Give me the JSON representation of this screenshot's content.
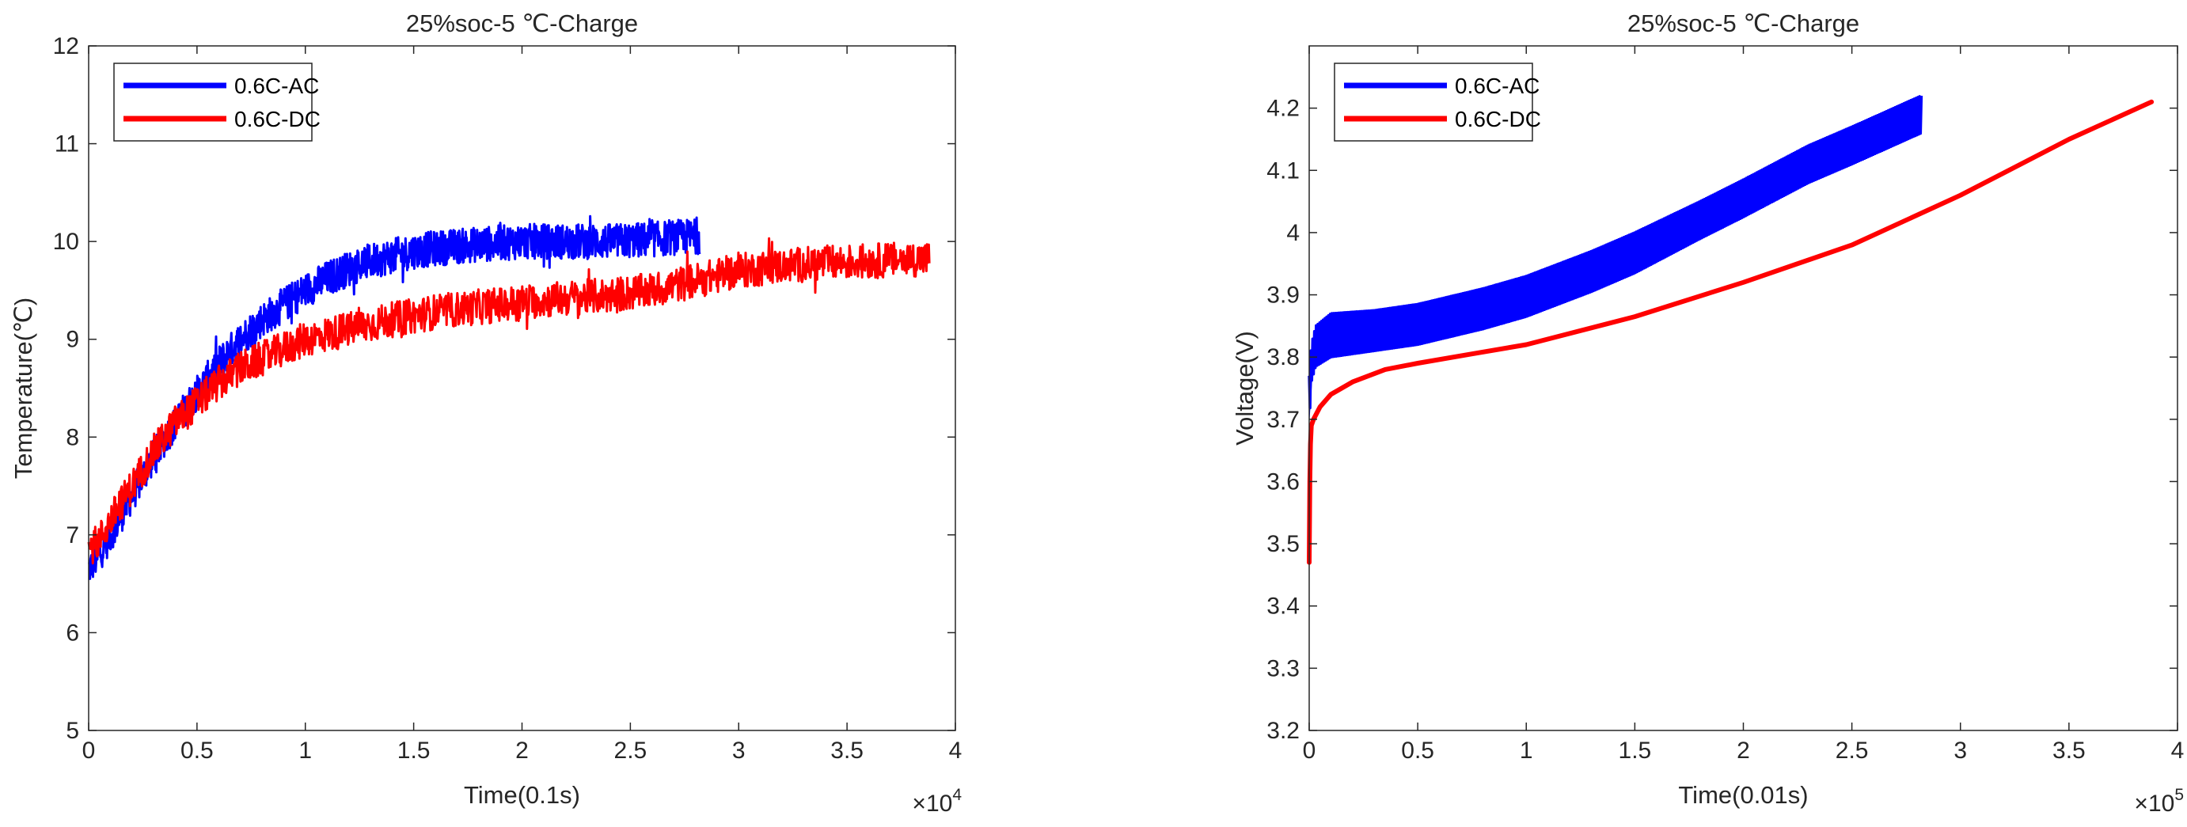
{
  "chart_data": [
    {
      "type": "line",
      "title": "25%soc-5 ℃-Charge",
      "xlabel": "Time(0.1s)",
      "ylabel": "Temperature(℃)",
      "x_exponent": "×10",
      "x_exponent_power": "4",
      "xlim": [
        0,
        4
      ],
      "ylim": [
        5,
        12
      ],
      "xticks": [
        "0",
        "0.5",
        "1",
        "1.5",
        "2",
        "2.5",
        "3",
        "3.5",
        "4"
      ],
      "yticks": [
        "5",
        "6",
        "7",
        "8",
        "9",
        "10",
        "11",
        "12"
      ],
      "legend": {
        "location": "top-left",
        "entries": [
          "0.6C-AC",
          "0.6C-DC"
        ]
      },
      "series": [
        {
          "name": "0.6C-AC",
          "color": "#0000ff",
          "noise_band": 0.18,
          "x": [
            0,
            0.05,
            0.1,
            0.2,
            0.3,
            0.4,
            0.5,
            0.6,
            0.7,
            0.8,
            0.9,
            1.0,
            1.1,
            1.2,
            1.3,
            1.4,
            1.5,
            1.6,
            1.8,
            2.0,
            2.2,
            2.4,
            2.6,
            2.75,
            2.82
          ],
          "values": [
            6.65,
            6.8,
            7.0,
            7.4,
            7.8,
            8.15,
            8.45,
            8.75,
            9.0,
            9.2,
            9.35,
            9.5,
            9.62,
            9.72,
            9.8,
            9.85,
            9.9,
            9.93,
            9.97,
            10.0,
            10.0,
            10.0,
            10.02,
            10.05,
            10.05
          ]
        },
        {
          "name": "0.6C-DC",
          "color": "#ff0000",
          "noise_band": 0.18,
          "x": [
            0,
            0.05,
            0.1,
            0.2,
            0.3,
            0.4,
            0.5,
            0.6,
            0.7,
            0.8,
            0.9,
            1.0,
            1.2,
            1.4,
            1.6,
            1.8,
            2.0,
            2.2,
            2.4,
            2.6,
            2.8,
            3.0,
            3.2,
            3.4,
            3.6,
            3.8,
            3.88
          ],
          "values": [
            6.85,
            6.95,
            7.15,
            7.5,
            7.85,
            8.15,
            8.35,
            8.55,
            8.7,
            8.8,
            8.9,
            9.0,
            9.1,
            9.2,
            9.28,
            9.33,
            9.38,
            9.42,
            9.45,
            9.5,
            9.6,
            9.7,
            9.75,
            9.78,
            9.8,
            9.82,
            9.82
          ]
        }
      ]
    },
    {
      "type": "line",
      "title": "25%soc-5 ℃-Charge",
      "xlabel": "Time(0.01s)",
      "ylabel": "Voltage(V)",
      "x_exponent": "×10",
      "x_exponent_power": "5",
      "xlim": [
        0,
        4
      ],
      "ylim": [
        3.2,
        4.3
      ],
      "xticks": [
        "0",
        "0.5",
        "1",
        "1.5",
        "2",
        "2.5",
        "3",
        "3.5",
        "4"
      ],
      "yticks": [
        "3.2",
        "3.3",
        "3.4",
        "3.5",
        "3.6",
        "3.7",
        "3.8",
        "3.9",
        "4",
        "4.1",
        "4.2"
      ],
      "legend": {
        "location": "top-left",
        "entries": [
          "0.6C-AC",
          "0.6C-DC"
        ]
      },
      "series": [
        {
          "name": "0.6C-AC",
          "color": "#0000ff",
          "band": true,
          "x": [
            0,
            0.01,
            0.03,
            0.1,
            0.3,
            0.5,
            0.8,
            1.0,
            1.3,
            1.5,
            1.8,
            2.0,
            2.3,
            2.5,
            2.82
          ],
          "upper": [
            3.77,
            3.82,
            3.85,
            3.87,
            3.875,
            3.885,
            3.91,
            3.93,
            3.97,
            4.0,
            4.05,
            4.085,
            4.14,
            4.17,
            4.22
          ],
          "lower": [
            3.69,
            3.76,
            3.785,
            3.8,
            3.81,
            3.82,
            3.845,
            3.865,
            3.905,
            3.935,
            3.99,
            4.025,
            4.08,
            4.11,
            4.16
          ]
        },
        {
          "name": "0.6C-DC",
          "color": "#ff0000",
          "x": [
            0,
            0.003,
            0.006,
            0.01,
            0.02,
            0.05,
            0.1,
            0.2,
            0.35,
            0.5,
            0.75,
            1.0,
            1.5,
            2.0,
            2.5,
            3.0,
            3.5,
            3.88
          ],
          "values": [
            3.47,
            3.6,
            3.66,
            3.69,
            3.7,
            3.72,
            3.74,
            3.76,
            3.78,
            3.79,
            3.805,
            3.82,
            3.865,
            3.92,
            3.98,
            4.06,
            4.15,
            4.21
          ]
        }
      ]
    }
  ]
}
